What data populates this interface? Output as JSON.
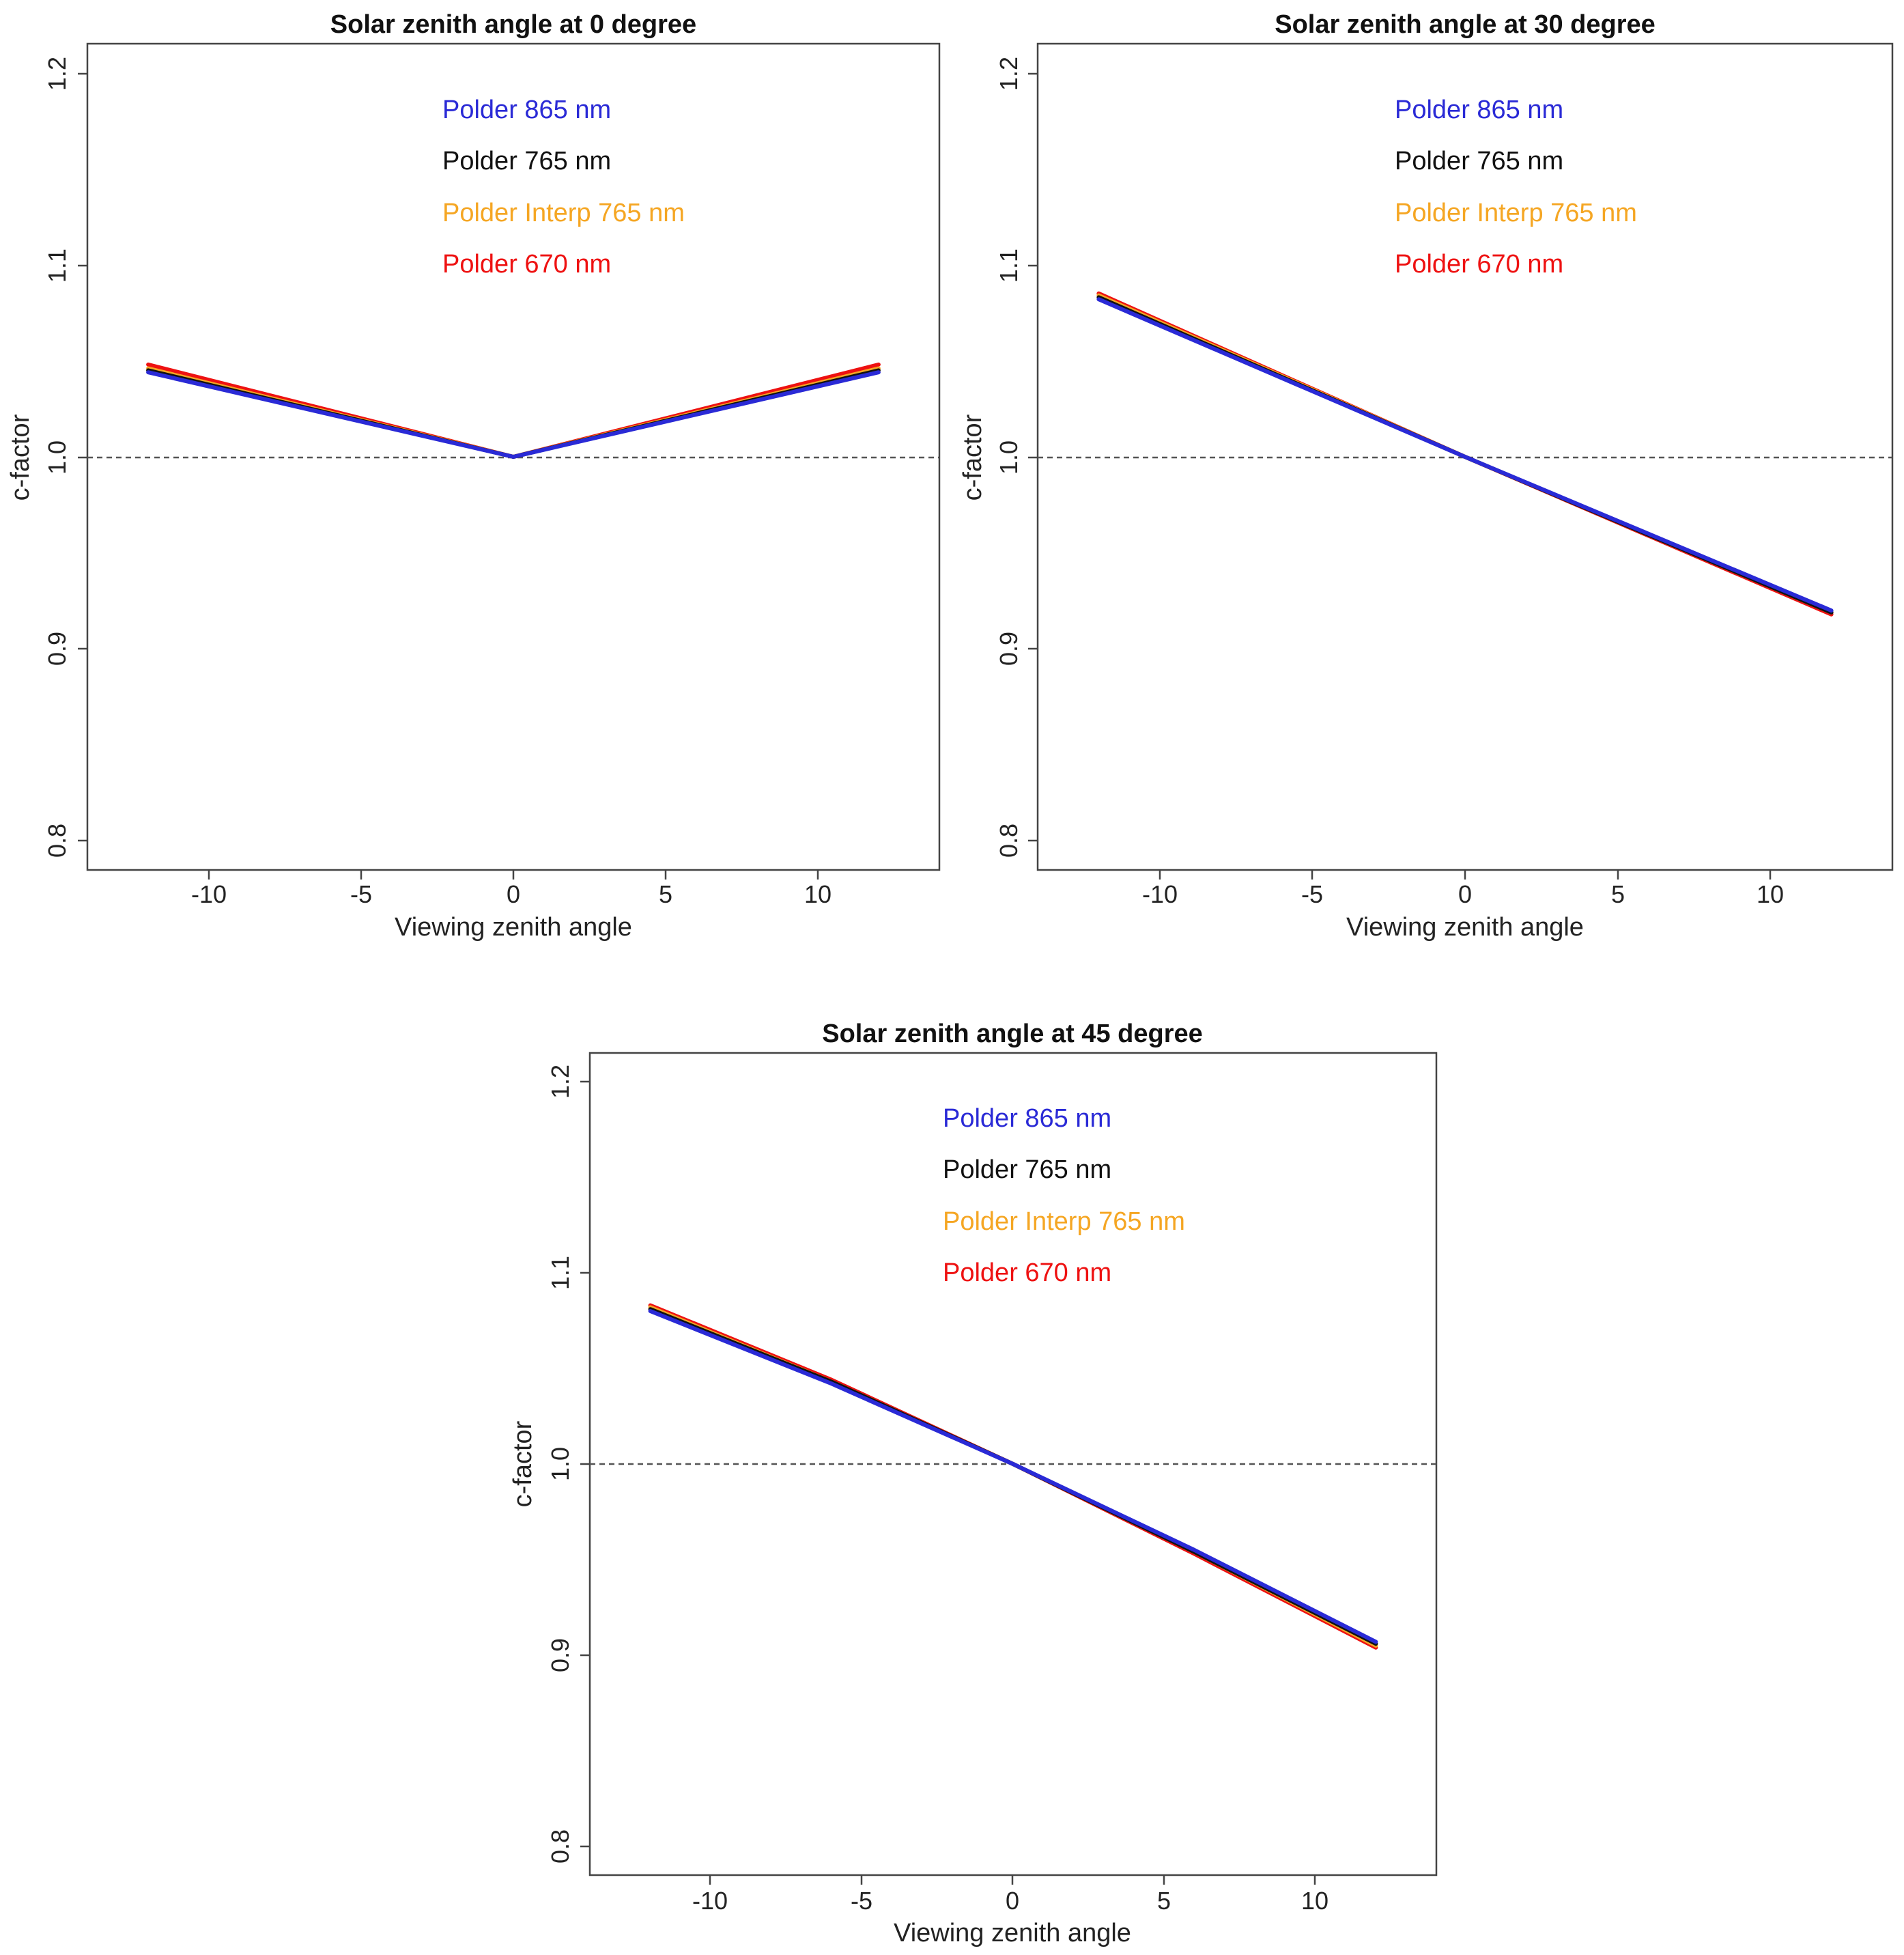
{
  "chart_data": [
    {
      "type": "line",
      "title": "Solar zenith angle at 0 degree",
      "xlabel": "Viewing zenith angle",
      "ylabel": "c-factor",
      "xlim": [
        -14,
        14
      ],
      "ylim": [
        0.785,
        1.215
      ],
      "xticks": [
        -10,
        -5,
        0,
        5,
        10
      ],
      "yticks": [
        0.8,
        0.9,
        1.0,
        1.1,
        1.2
      ],
      "reference_line": 1.0,
      "legend": [
        "Polder 865 nm",
        "Polder 765 nm",
        "Polder Interp 765 nm",
        "Polder 670 nm"
      ],
      "series": [
        {
          "name": "Polder 670 nm",
          "color": "#ee1111",
          "x": [
            -12,
            0,
            12
          ],
          "y": [
            1.048,
            1.0,
            1.048
          ]
        },
        {
          "name": "Polder Interp 765 nm",
          "color": "#f5a623",
          "x": [
            -12,
            0,
            12
          ],
          "y": [
            1.046,
            1.0,
            1.046
          ]
        },
        {
          "name": "Polder 765 nm",
          "color": "#111111",
          "x": [
            -12,
            0,
            12
          ],
          "y": [
            1.045,
            1.0,
            1.045
          ]
        },
        {
          "name": "Polder 865 nm",
          "color": "#2a2ad6",
          "x": [
            -12,
            0,
            12
          ],
          "y": [
            1.044,
            1.0,
            1.044
          ]
        }
      ]
    },
    {
      "type": "line",
      "title": "Solar zenith angle at 30 degree",
      "xlabel": "Viewing zenith angle",
      "ylabel": "c-factor",
      "xlim": [
        -14,
        14
      ],
      "ylim": [
        0.785,
        1.215
      ],
      "xticks": [
        -10,
        -5,
        0,
        5,
        10
      ],
      "yticks": [
        0.8,
        0.9,
        1.0,
        1.1,
        1.2
      ],
      "reference_line": 1.0,
      "legend": [
        "Polder 865 nm",
        "Polder 765 nm",
        "Polder Interp 765 nm",
        "Polder 670 nm"
      ],
      "series": [
        {
          "name": "Polder 670 nm",
          "color": "#ee1111",
          "x": [
            -12,
            0,
            12
          ],
          "y": [
            1.085,
            1.0,
            0.918
          ]
        },
        {
          "name": "Polder Interp 765 nm",
          "color": "#f5a623",
          "x": [
            -12,
            0,
            12
          ],
          "y": [
            1.084,
            1.0,
            0.919
          ]
        },
        {
          "name": "Polder 765 nm",
          "color": "#111111",
          "x": [
            -12,
            0,
            12
          ],
          "y": [
            1.083,
            1.0,
            0.919
          ]
        },
        {
          "name": "Polder 865 nm",
          "color": "#2a2ad6",
          "x": [
            -12,
            0,
            12
          ],
          "y": [
            1.082,
            1.0,
            0.92
          ]
        }
      ]
    },
    {
      "type": "line",
      "title": "Solar zenith angle at 45 degree",
      "xlabel": "Viewing zenith angle",
      "ylabel": "c-factor",
      "xlim": [
        -14,
        14
      ],
      "ylim": [
        0.785,
        1.215
      ],
      "xticks": [
        -10,
        -5,
        0,
        5,
        10
      ],
      "yticks": [
        0.8,
        0.9,
        1.0,
        1.1,
        1.2
      ],
      "reference_line": 1.0,
      "legend": [
        "Polder 865 nm",
        "Polder 765 nm",
        "Polder Interp 765 nm",
        "Polder 670 nm"
      ],
      "series": [
        {
          "name": "Polder 670 nm",
          "color": "#ee1111",
          "x": [
            -12,
            -6,
            0,
            6,
            12
          ],
          "y": [
            1.083,
            1.044,
            1.0,
            0.953,
            0.904
          ]
        },
        {
          "name": "Polder Interp 765 nm",
          "color": "#f5a623",
          "x": [
            -12,
            -6,
            0,
            6,
            12
          ],
          "y": [
            1.082,
            1.043,
            1.0,
            0.954,
            0.905
          ]
        },
        {
          "name": "Polder 765 nm",
          "color": "#111111",
          "x": [
            -12,
            -6,
            0,
            6,
            12
          ],
          "y": [
            1.081,
            1.043,
            1.0,
            0.954,
            0.906
          ]
        },
        {
          "name": "Polder 865 nm",
          "color": "#2a2ad6",
          "x": [
            -12,
            -6,
            0,
            6,
            12
          ],
          "y": [
            1.08,
            1.042,
            1.0,
            0.955,
            0.907
          ]
        }
      ]
    }
  ]
}
